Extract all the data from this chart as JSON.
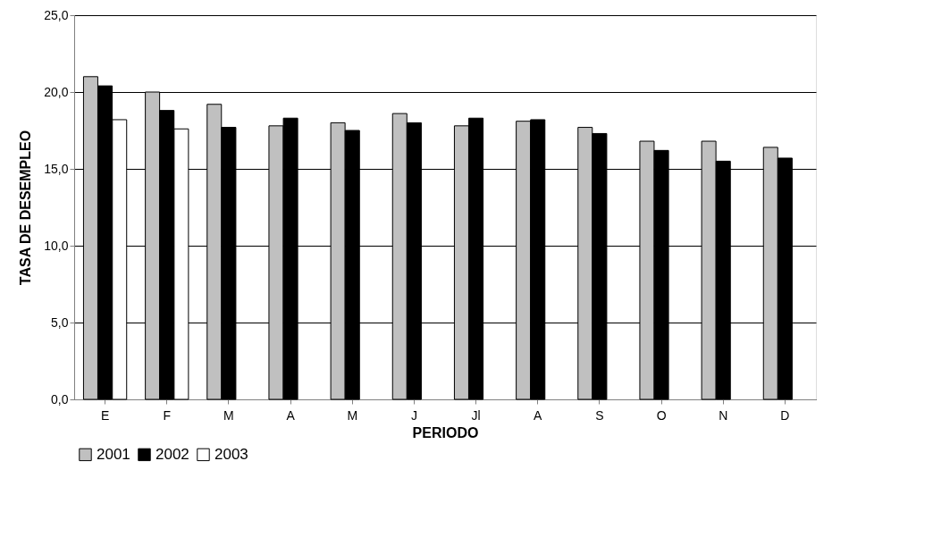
{
  "chart_data": {
    "type": "bar",
    "xlabel": "PERIODO",
    "ylabel": "TASA DE DESEMPLEO",
    "categories": [
      "E",
      "F",
      "M",
      "A",
      "M",
      "J",
      "Jl",
      "A",
      "S",
      "O",
      "N",
      "D"
    ],
    "series": [
      {
        "name": "2001",
        "color": "#c0c0c0",
        "values": [
          21.0,
          20.0,
          19.2,
          17.8,
          18.0,
          18.6,
          17.8,
          18.1,
          17.7,
          16.8,
          16.8,
          16.4
        ]
      },
      {
        "name": "2002",
        "color": "#000000",
        "values": [
          20.4,
          18.8,
          17.7,
          18.3,
          17.5,
          18.0,
          18.3,
          18.2,
          17.3,
          16.2,
          15.5,
          15.7
        ]
      },
      {
        "name": "2003",
        "color": "#ffffff",
        "values": [
          18.2,
          17.6,
          null,
          null,
          null,
          null,
          null,
          null,
          null,
          null,
          null,
          null
        ]
      }
    ],
    "ylim": [
      0,
      25
    ],
    "yticks": [
      {
        "value": 0,
        "label": "0,0"
      },
      {
        "value": 5,
        "label": "5,0"
      },
      {
        "value": 10,
        "label": "10,0"
      },
      {
        "value": 15,
        "label": "15,0"
      },
      {
        "value": 20,
        "label": "20,0"
      },
      {
        "value": 25,
        "label": "25,0"
      }
    ],
    "grid": "y",
    "legend": "bottom"
  }
}
